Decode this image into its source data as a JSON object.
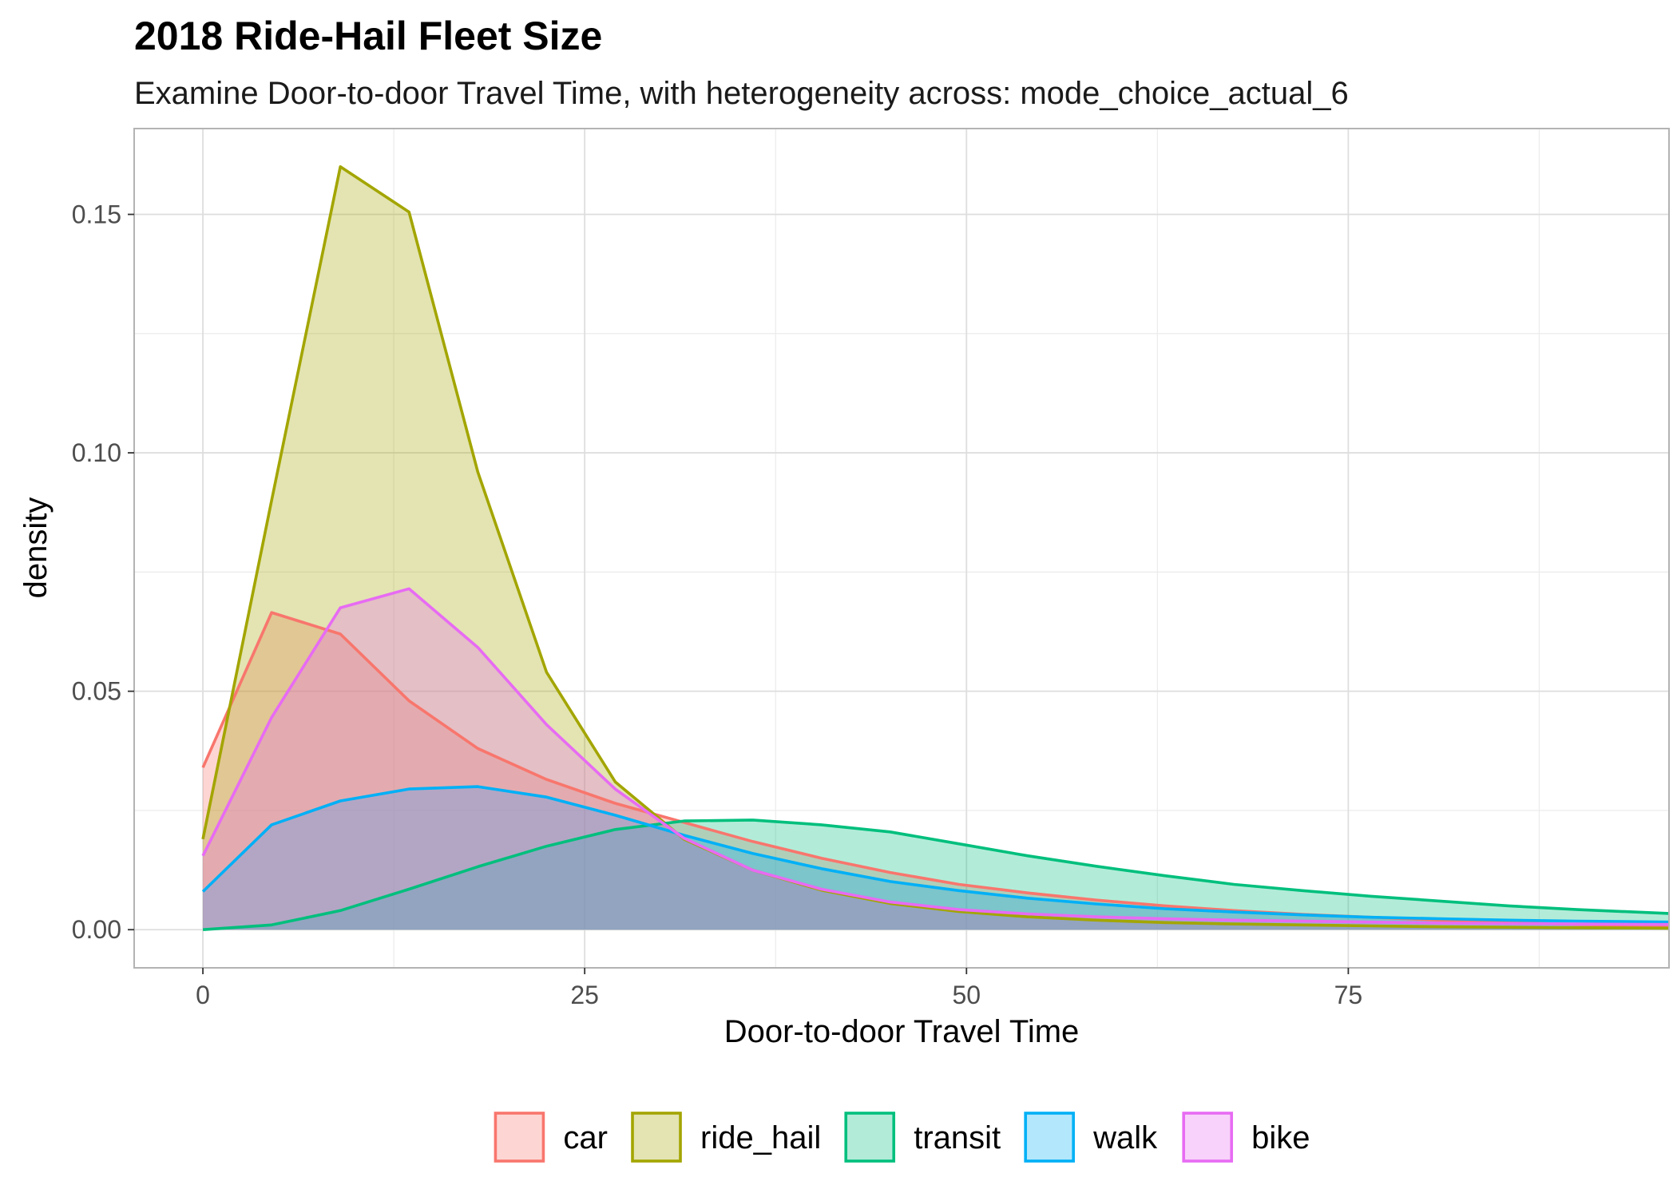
{
  "chart_data": {
    "type": "area",
    "title": "2018 Ride-Hail Fleet Size",
    "subtitle": "Examine Door-to-door Travel Time, with heterogeneity across: mode_choice_actual_6",
    "xlabel": "Door-to-door Travel Time",
    "ylabel": "density",
    "xlim": [
      -4.5,
      96
    ],
    "ylim": [
      -0.008,
      0.168
    ],
    "x_ticks": [
      0,
      25,
      50,
      75
    ],
    "x_tick_labels": [
      "0",
      "25",
      "50",
      "75"
    ],
    "y_ticks": [
      0.0,
      0.05,
      0.1,
      0.15
    ],
    "y_tick_labels": [
      "0.00",
      "0.05",
      "0.10",
      "0.15"
    ],
    "grid": true,
    "legend_position": "bottom",
    "series": [
      {
        "name": "car",
        "color": "#F8766D",
        "x": [
          0,
          4.5,
          9,
          13.5,
          18,
          22.5,
          27,
          31.5,
          36,
          40.5,
          45,
          49.5,
          54,
          58.5,
          63,
          67.5,
          72,
          76.5,
          81,
          85.5,
          90,
          96
        ],
        "y": [
          0.034,
          0.0665,
          0.062,
          0.048,
          0.038,
          0.0315,
          0.0265,
          0.0225,
          0.0185,
          0.015,
          0.012,
          0.0095,
          0.0077,
          0.0062,
          0.005,
          0.004,
          0.0032,
          0.0026,
          0.002,
          0.0015,
          0.0011,
          0.0007
        ]
      },
      {
        "name": "ride_hail",
        "color": "#A3A500",
        "x": [
          0,
          4.5,
          9,
          13.5,
          18,
          22.5,
          27,
          31.5,
          36,
          40.5,
          45,
          49.5,
          54,
          58.5,
          63,
          67.5,
          72,
          76.5,
          81,
          85.5,
          90,
          96
        ],
        "y": [
          0.019,
          0.09,
          0.16,
          0.1505,
          0.096,
          0.054,
          0.031,
          0.019,
          0.0125,
          0.0083,
          0.0055,
          0.0038,
          0.0027,
          0.002,
          0.0015,
          0.0012,
          0.001,
          0.0008,
          0.0006,
          0.0005,
          0.0004,
          0.0003
        ]
      },
      {
        "name": "transit",
        "color": "#00BF7D",
        "x": [
          0,
          4.5,
          9,
          13.5,
          18,
          22.5,
          27,
          31.5,
          36,
          40.5,
          45,
          49.5,
          54,
          58.5,
          63,
          67.5,
          72,
          76.5,
          81,
          85.5,
          90,
          96
        ],
        "y": [
          0.0,
          0.001,
          0.004,
          0.0085,
          0.0132,
          0.0175,
          0.021,
          0.0228,
          0.023,
          0.022,
          0.0205,
          0.018,
          0.0155,
          0.0133,
          0.0113,
          0.0095,
          0.0082,
          0.007,
          0.006,
          0.005,
          0.0042,
          0.0034
        ]
      },
      {
        "name": "walk",
        "color": "#00B0F6",
        "x": [
          0,
          4.5,
          9,
          13.5,
          18,
          22.5,
          27,
          31.5,
          36,
          40.5,
          45,
          49.5,
          54,
          58.5,
          63,
          67.5,
          72,
          76.5,
          81,
          85.5,
          90,
          96
        ],
        "y": [
          0.008,
          0.022,
          0.027,
          0.0295,
          0.03,
          0.0278,
          0.024,
          0.0198,
          0.016,
          0.0128,
          0.0101,
          0.0082,
          0.0066,
          0.0054,
          0.0044,
          0.0037,
          0.0031,
          0.0026,
          0.0023,
          0.002,
          0.0018,
          0.0016
        ]
      },
      {
        "name": "bike",
        "color": "#E76BF3",
        "x": [
          0,
          4.5,
          9,
          13.5,
          18,
          22.5,
          27,
          31.5,
          36,
          40.5,
          45,
          49.5,
          54,
          58.5,
          63,
          67.5,
          72,
          76.5,
          81,
          85.5,
          90,
          96
        ],
        "y": [
          0.0155,
          0.0445,
          0.0675,
          0.0715,
          0.0592,
          0.043,
          0.0295,
          0.0192,
          0.0125,
          0.0085,
          0.0058,
          0.0042,
          0.0033,
          0.0027,
          0.0023,
          0.002,
          0.0018,
          0.0016,
          0.0014,
          0.0013,
          0.0012,
          0.0011
        ]
      }
    ]
  }
}
